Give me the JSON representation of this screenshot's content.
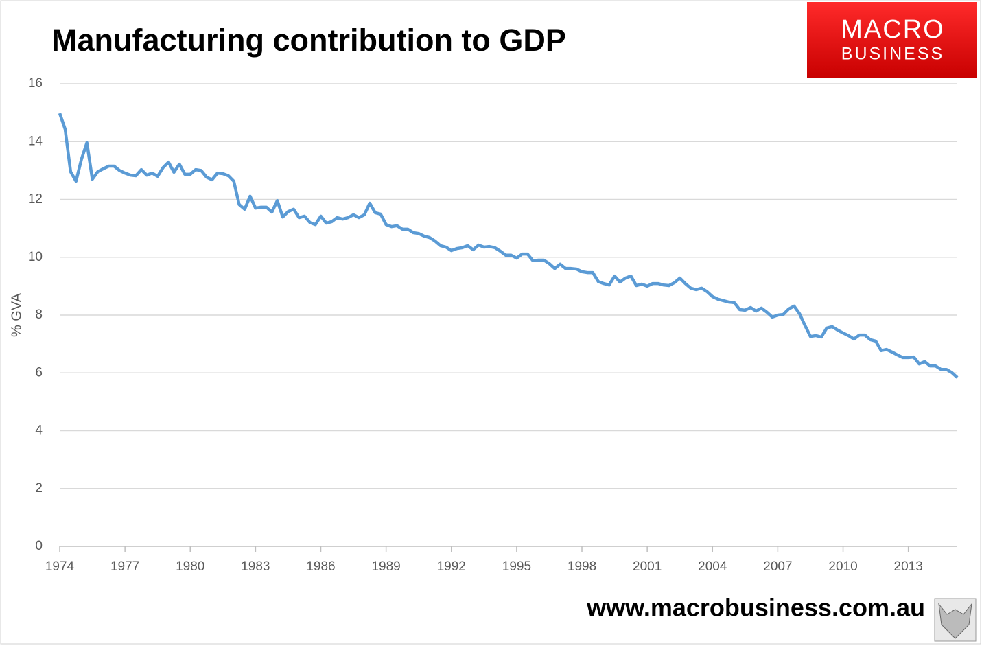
{
  "chart_data": {
    "type": "line",
    "title": "Manufacturing contribution to GDP",
    "ylabel": "% GVA",
    "color": "#5b9bd5",
    "x": [
      1974,
      1974.25,
      1974.5,
      1974.75,
      1975,
      1975.25,
      1975.5,
      1975.75,
      1976,
      1976.25,
      1976.5,
      1976.75,
      1977,
      1977.25,
      1977.5,
      1977.75,
      1978,
      1978.25,
      1978.5,
      1978.75,
      1979,
      1979.25,
      1979.5,
      1979.75,
      1980,
      1980.25,
      1980.5,
      1980.75,
      1981,
      1981.25,
      1981.5,
      1981.75,
      1982,
      1982.25,
      1982.5,
      1982.75,
      1983,
      1983.25,
      1983.5,
      1983.75,
      1984,
      1984.25,
      1984.5,
      1984.75,
      1985,
      1985.25,
      1985.5,
      1985.75,
      1986,
      1986.25,
      1986.5,
      1986.75,
      1987,
      1987.25,
      1987.5,
      1987.75,
      1988,
      1988.25,
      1988.5,
      1988.75,
      1989,
      1989.25,
      1989.5,
      1989.75,
      1990,
      1990.25,
      1990.5,
      1990.75,
      1991,
      1991.25,
      1991.5,
      1991.75,
      1992,
      1992.25,
      1992.5,
      1992.75,
      1993,
      1993.25,
      1993.5,
      1993.75,
      1994,
      1994.25,
      1994.5,
      1994.75,
      1995,
      1995.25,
      1995.5,
      1995.75,
      1996,
      1996.25,
      1996.5,
      1996.75,
      1997,
      1997.25,
      1997.5,
      1997.75,
      1998,
      1998.25,
      1998.5,
      1998.75,
      1999,
      1999.25,
      1999.5,
      1999.75,
      2000,
      2000.25,
      2000.5,
      2000.75,
      2001,
      2001.25,
      2001.5,
      2001.75,
      2002,
      2002.25,
      2002.5,
      2002.75,
      2003,
      2003.25,
      2003.5,
      2003.75,
      2004,
      2004.25,
      2004.5,
      2004.75,
      2005,
      2005.25,
      2005.5,
      2005.75,
      2006,
      2006.25,
      2006.5,
      2006.75,
      2007,
      2007.25,
      2007.5,
      2007.75,
      2008,
      2008.25,
      2008.5,
      2008.75,
      2009,
      2009.25,
      2009.5,
      2009.75,
      2010,
      2010.25,
      2010.5,
      2010.75,
      2011,
      2011.25,
      2011.5,
      2011.75,
      2012,
      2012.25,
      2012.5,
      2012.75,
      2013,
      2013.25,
      2013.5,
      2013.75,
      2014,
      2014.25,
      2014.5,
      2014.75,
      2015,
      2015.25
    ],
    "values": [
      14.98,
      14.43,
      12.96,
      12.63,
      13.39,
      13.96,
      12.7,
      12.96,
      13.06,
      13.15,
      13.15,
      13.0,
      12.91,
      12.84,
      12.82,
      13.03,
      12.84,
      12.91,
      12.8,
      13.1,
      13.29,
      12.94,
      13.22,
      12.87,
      12.87,
      13.03,
      13.0,
      12.77,
      12.68,
      12.91,
      12.89,
      12.82,
      12.63,
      11.82,
      11.66,
      12.11,
      11.7,
      11.73,
      11.73,
      11.56,
      11.96,
      11.39,
      11.58,
      11.66,
      11.37,
      11.42,
      11.2,
      11.13,
      11.42,
      11.18,
      11.23,
      11.37,
      11.32,
      11.37,
      11.47,
      11.37,
      11.47,
      11.87,
      11.54,
      11.49,
      11.13,
      11.06,
      11.09,
      10.97,
      10.97,
      10.85,
      10.82,
      10.73,
      10.68,
      10.56,
      10.4,
      10.35,
      10.23,
      10.3,
      10.33,
      10.4,
      10.26,
      10.42,
      10.35,
      10.37,
      10.33,
      10.21,
      10.07,
      10.07,
      9.97,
      10.11,
      10.11,
      9.88,
      9.9,
      9.9,
      9.78,
      9.61,
      9.76,
      9.61,
      9.61,
      9.59,
      9.5,
      9.47,
      9.47,
      9.16,
      9.09,
      9.04,
      9.35,
      9.14,
      9.28,
      9.35,
      9.02,
      9.07,
      9.0,
      9.09,
      9.09,
      9.04,
      9.02,
      9.12,
      9.28,
      9.09,
      8.93,
      8.88,
      8.93,
      8.81,
      8.64,
      8.55,
      8.5,
      8.45,
      8.43,
      8.19,
      8.17,
      8.26,
      8.14,
      8.24,
      8.1,
      7.93,
      8.0,
      8.02,
      8.21,
      8.31,
      8.05,
      7.64,
      7.26,
      7.29,
      7.24,
      7.55,
      7.6,
      7.48,
      7.38,
      7.29,
      7.17,
      7.31,
      7.31,
      7.15,
      7.1,
      6.77,
      6.81,
      6.72,
      6.62,
      6.53,
      6.53,
      6.55,
      6.31,
      6.39,
      6.24,
      6.24,
      6.12,
      6.12,
      6.01,
      5.84
    ],
    "xlim": [
      1974,
      2015.25
    ],
    "xticks": [
      1974,
      1977,
      1980,
      1983,
      1986,
      1989,
      1992,
      1995,
      1998,
      2001,
      2004,
      2007,
      2010,
      2013
    ],
    "ylim": [
      0,
      16
    ],
    "yticks": [
      0,
      2,
      4,
      6,
      8,
      10,
      12,
      14,
      16
    ],
    "grid": true
  },
  "logo": {
    "line1": "MACRO",
    "line2": "BUSINESS"
  },
  "footer": "www.macrobusiness.com.au"
}
